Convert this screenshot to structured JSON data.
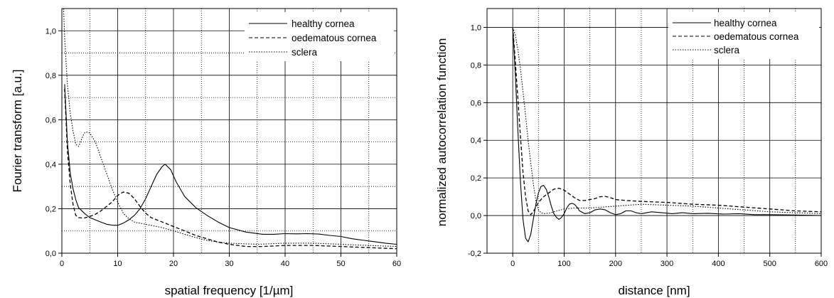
{
  "chart_data": [
    {
      "type": "line",
      "xlabel": "spatial frequency [1/µm]",
      "ylabel": "Fourier transform [a.u.]",
      "xlim": [
        0,
        60
      ],
      "ylim": [
        0,
        1.1
      ],
      "xticks": [
        "0",
        "10",
        "20",
        "30",
        "40",
        "50",
        "60"
      ],
      "yticks": [
        "0,0",
        "0,2",
        "0,4",
        "0,6",
        "0,8",
        "1,0"
      ],
      "grid": "on",
      "legend_position": "top-right",
      "series": [
        {
          "name": "healthy cornea",
          "style": "solid",
          "color": "#000000",
          "points": [
            [
              0.5,
              0.76
            ],
            [
              1,
              0.5
            ],
            [
              1.5,
              0.36
            ],
            [
              2,
              0.29
            ],
            [
              2.5,
              0.24
            ],
            [
              3,
              0.205
            ],
            [
              4,
              0.18
            ],
            [
              5,
              0.16
            ],
            [
              6,
              0.15
            ],
            [
              7,
              0.14
            ],
            [
              8,
              0.13
            ],
            [
              9,
              0.126
            ],
            [
              10,
              0.125
            ],
            [
              11,
              0.135
            ],
            [
              12,
              0.15
            ],
            [
              13,
              0.17
            ],
            [
              14,
              0.2
            ],
            [
              15,
              0.245
            ],
            [
              16,
              0.3
            ],
            [
              17,
              0.355
            ],
            [
              18,
              0.39
            ],
            [
              18.5,
              0.4
            ],
            [
              19.5,
              0.375
            ],
            [
              20.5,
              0.32
            ],
            [
              22,
              0.255
            ],
            [
              24,
              0.205
            ],
            [
              26,
              0.17
            ],
            [
              28,
              0.14
            ],
            [
              30,
              0.115
            ],
            [
              33,
              0.095
            ],
            [
              36,
              0.085
            ],
            [
              38,
              0.085
            ],
            [
              40,
              0.088
            ],
            [
              42,
              0.087
            ],
            [
              44,
              0.088
            ],
            [
              46,
              0.086
            ],
            [
              48,
              0.08
            ],
            [
              50,
              0.075
            ],
            [
              52,
              0.065
            ],
            [
              55,
              0.055
            ],
            [
              58,
              0.045
            ],
            [
              60,
              0.04
            ]
          ]
        },
        {
          "name": "oedematous cornea",
          "style": "dashed",
          "color": "#000000",
          "points": [
            [
              0.5,
              0.74
            ],
            [
              1,
              0.46
            ],
            [
              1.5,
              0.31
            ],
            [
              2,
              0.22
            ],
            [
              2.5,
              0.17
            ],
            [
              3,
              0.16
            ],
            [
              4,
              0.158
            ],
            [
              5,
              0.165
            ],
            [
              6,
              0.175
            ],
            [
              7,
              0.19
            ],
            [
              8,
              0.21
            ],
            [
              9,
              0.23
            ],
            [
              10,
              0.26
            ],
            [
              11,
              0.275
            ],
            [
              12,
              0.27
            ],
            [
              13,
              0.245
            ],
            [
              14,
              0.21
            ],
            [
              15,
              0.18
            ],
            [
              16,
              0.16
            ],
            [
              18,
              0.14
            ],
            [
              20,
              0.12
            ],
            [
              22,
              0.1
            ],
            [
              24,
              0.08
            ],
            [
              26,
              0.065
            ],
            [
              28,
              0.05
            ],
            [
              30,
              0.04
            ],
            [
              33,
              0.03
            ],
            [
              36,
              0.03
            ],
            [
              40,
              0.035
            ],
            [
              45,
              0.035
            ],
            [
              50,
              0.03
            ],
            [
              55,
              0.025
            ],
            [
              60,
              0.02
            ]
          ]
        },
        {
          "name": "sclera",
          "style": "dotted",
          "color": "#000000",
          "points": [
            [
              0.3,
              1.1
            ],
            [
              0.5,
              0.97
            ],
            [
              1,
              0.76
            ],
            [
              1.5,
              0.63
            ],
            [
              2,
              0.55
            ],
            [
              2.5,
              0.49
            ],
            [
              3,
              0.48
            ],
            [
              3.5,
              0.51
            ],
            [
              4,
              0.54
            ],
            [
              4.5,
              0.545
            ],
            [
              5,
              0.54
            ],
            [
              6,
              0.5
            ],
            [
              7,
              0.43
            ],
            [
              8,
              0.36
            ],
            [
              9,
              0.29
            ],
            [
              10,
              0.23
            ],
            [
              11,
              0.18
            ],
            [
              12,
              0.155
            ],
            [
              13,
              0.14
            ],
            [
              14,
              0.135
            ],
            [
              15,
              0.13
            ],
            [
              16,
              0.125
            ],
            [
              18,
              0.115
            ],
            [
              20,
              0.1
            ],
            [
              22,
              0.085
            ],
            [
              24,
              0.07
            ],
            [
              26,
              0.058
            ],
            [
              28,
              0.05
            ],
            [
              30,
              0.045
            ],
            [
              35,
              0.04
            ],
            [
              40,
              0.045
            ],
            [
              45,
              0.045
            ],
            [
              50,
              0.04
            ],
            [
              55,
              0.035
            ],
            [
              60,
              0.03
            ]
          ]
        }
      ]
    },
    {
      "type": "line",
      "xlabel": "distance [nm]",
      "ylabel": "normalized autocorrelation function",
      "xlim": [
        -50,
        600
      ],
      "ylim": [
        -0.2,
        1.1
      ],
      "xticks": [
        "0",
        "100",
        "200",
        "300",
        "400",
        "500",
        "600"
      ],
      "yticks": [
        "-0,2",
        "0,0",
        "0,2",
        "0,4",
        "0,6",
        "0,8",
        "1,0"
      ],
      "grid": "on",
      "legend_position": "top-right",
      "series": [
        {
          "name": "healthy cornea",
          "style": "solid",
          "color": "#000000",
          "points": [
            [
              0,
              1.0
            ],
            [
              5,
              0.75
            ],
            [
              10,
              0.45
            ],
            [
              15,
              0.18
            ],
            [
              20,
              -0.02
            ],
            [
              25,
              -0.12
            ],
            [
              30,
              -0.14
            ],
            [
              35,
              -0.1
            ],
            [
              40,
              -0.02
            ],
            [
              45,
              0.06
            ],
            [
              50,
              0.12
            ],
            [
              55,
              0.155
            ],
            [
              60,
              0.16
            ],
            [
              65,
              0.14
            ],
            [
              70,
              0.1
            ],
            [
              75,
              0.05
            ],
            [
              80,
              0.01
            ],
            [
              85,
              -0.01
            ],
            [
              90,
              -0.02
            ],
            [
              95,
              -0.01
            ],
            [
              100,
              0.01
            ],
            [
              105,
              0.04
            ],
            [
              110,
              0.06
            ],
            [
              115,
              0.065
            ],
            [
              120,
              0.06
            ],
            [
              125,
              0.045
            ],
            [
              130,
              0.025
            ],
            [
              140,
              0.01
            ],
            [
              150,
              0.015
            ],
            [
              160,
              0.03
            ],
            [
              170,
              0.035
            ],
            [
              180,
              0.03
            ],
            [
              190,
              0.015
            ],
            [
              200,
              0.005
            ],
            [
              210,
              0.01
            ],
            [
              220,
              0.025
            ],
            [
              230,
              0.025
            ],
            [
              240,
              0.015
            ],
            [
              250,
              0.01
            ],
            [
              270,
              0.02
            ],
            [
              290,
              0.015
            ],
            [
              310,
              0.01
            ],
            [
              330,
              0.015
            ],
            [
              350,
              0.01
            ],
            [
              380,
              0.012
            ],
            [
              410,
              0.008
            ],
            [
              440,
              0.01
            ],
            [
              470,
              0.005
            ],
            [
              500,
              0.005
            ],
            [
              550,
              0.003
            ],
            [
              600,
              0.0
            ]
          ]
        },
        {
          "name": "oedematous cornea",
          "style": "dashed",
          "color": "#000000",
          "points": [
            [
              0,
              1.0
            ],
            [
              5,
              0.82
            ],
            [
              10,
              0.62
            ],
            [
              15,
              0.42
            ],
            [
              20,
              0.23
            ],
            [
              25,
              0.1
            ],
            [
              30,
              0.025
            ],
            [
              35,
              0.005
            ],
            [
              40,
              0.02
            ],
            [
              50,
              0.07
            ],
            [
              60,
              0.1
            ],
            [
              70,
              0.12
            ],
            [
              80,
              0.14
            ],
            [
              90,
              0.145
            ],
            [
              100,
              0.135
            ],
            [
              110,
              0.115
            ],
            [
              120,
              0.095
            ],
            [
              130,
              0.08
            ],
            [
              140,
              0.08
            ],
            [
              150,
              0.085
            ],
            [
              160,
              0.09
            ],
            [
              170,
              0.1
            ],
            [
              180,
              0.102
            ],
            [
              190,
              0.095
            ],
            [
              200,
              0.085
            ],
            [
              220,
              0.08
            ],
            [
              250,
              0.075
            ],
            [
              300,
              0.07
            ],
            [
              350,
              0.06
            ],
            [
              400,
              0.055
            ],
            [
              450,
              0.045
            ],
            [
              500,
              0.035
            ],
            [
              550,
              0.025
            ],
            [
              600,
              0.02
            ]
          ]
        },
        {
          "name": "sclera",
          "style": "dotted",
          "color": "#000000",
          "points": [
            [
              0,
              1.0
            ],
            [
              5,
              0.96
            ],
            [
              10,
              0.88
            ],
            [
              15,
              0.78
            ],
            [
              20,
              0.66
            ],
            [
              25,
              0.53
            ],
            [
              30,
              0.4
            ],
            [
              35,
              0.28
            ],
            [
              40,
              0.17
            ],
            [
              45,
              0.08
            ],
            [
              50,
              0.03
            ],
            [
              55,
              0.015
            ],
            [
              60,
              0.01
            ],
            [
              70,
              0.012
            ],
            [
              80,
              0.02
            ],
            [
              100,
              0.035
            ],
            [
              120,
              0.04
            ],
            [
              150,
              0.04
            ],
            [
              200,
              0.05
            ],
            [
              250,
              0.06
            ],
            [
              300,
              0.055
            ],
            [
              350,
              0.05
            ],
            [
              400,
              0.04
            ],
            [
              450,
              0.03
            ],
            [
              500,
              0.02
            ],
            [
              550,
              0.015
            ],
            [
              600,
              0.01
            ]
          ]
        }
      ]
    }
  ]
}
